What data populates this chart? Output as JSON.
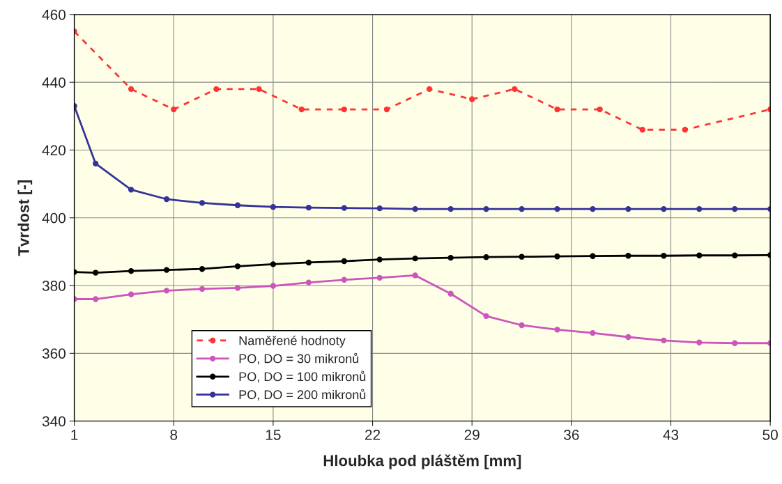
{
  "chart_data": {
    "type": "line",
    "xlabel": "Hloubka pod pláštěm [mm]",
    "ylabel": "Tvrdost [-]",
    "xlim": [
      1,
      50
    ],
    "xticks": [
      1,
      8,
      15,
      22,
      29,
      36,
      43,
      50
    ],
    "ylim": [
      340,
      460
    ],
    "yticks": [
      340,
      360,
      380,
      400,
      420,
      440,
      460
    ],
    "grid": true,
    "legend": "bottom left",
    "marker": "circle",
    "series": [
      {
        "name": "Naměřené hodnoty",
        "color": "#ff3333",
        "line_style": "dashed",
        "x": [
          1,
          5,
          8,
          11,
          14,
          17,
          20,
          23,
          26,
          29,
          32,
          35,
          38,
          41,
          44,
          50
        ],
        "values": [
          455,
          438,
          432,
          438,
          438,
          432,
          432,
          432,
          438,
          435,
          438,
          432,
          432,
          426,
          426,
          432
        ]
      },
      {
        "name": "PO, DO = 30 mikronů",
        "color": "#cc55bb",
        "line_style": "solid",
        "x": [
          1,
          2.5,
          5,
          7.5,
          10,
          12.5,
          15,
          17.5,
          20,
          22.5,
          25,
          27.5,
          30,
          32.5,
          35,
          37.5,
          40,
          42.5,
          45,
          47.5,
          50
        ],
        "values": [
          376,
          376,
          377.4,
          378.5,
          379,
          379.3,
          379.9,
          380.9,
          381.7,
          382.3,
          383,
          377.6,
          371,
          368.3,
          367,
          366,
          364.8,
          363.8,
          363.2,
          363,
          363
        ]
      },
      {
        "name": "PO, DO = 100 mikronů",
        "color": "#000000",
        "line_style": "solid",
        "x": [
          1,
          2.5,
          5,
          7.5,
          10,
          12.5,
          15,
          17.5,
          20,
          22.5,
          25,
          27.5,
          30,
          32.5,
          35,
          37.5,
          40,
          42.5,
          45,
          47.5,
          50
        ],
        "values": [
          384,
          383.8,
          384.3,
          384.6,
          384.9,
          385.7,
          386.3,
          386.8,
          387.2,
          387.7,
          388,
          388.2,
          388.4,
          388.5,
          388.6,
          388.7,
          388.8,
          388.8,
          388.9,
          388.9,
          389
        ]
      },
      {
        "name": "PO, DO = 200 mikronů",
        "color": "#333399",
        "line_style": "solid",
        "x": [
          1,
          2.5,
          5,
          7.5,
          10,
          12.5,
          15,
          17.5,
          20,
          22.5,
          25,
          27.5,
          30,
          32.5,
          35,
          37.5,
          40,
          42.5,
          45,
          47.5,
          50
        ],
        "values": [
          433,
          416,
          408.3,
          405.5,
          404.4,
          403.7,
          403.2,
          403,
          402.9,
          402.8,
          402.6,
          402.6,
          402.6,
          402.6,
          402.6,
          402.6,
          402.6,
          402.6,
          402.6,
          402.6,
          402.6
        ]
      }
    ]
  }
}
